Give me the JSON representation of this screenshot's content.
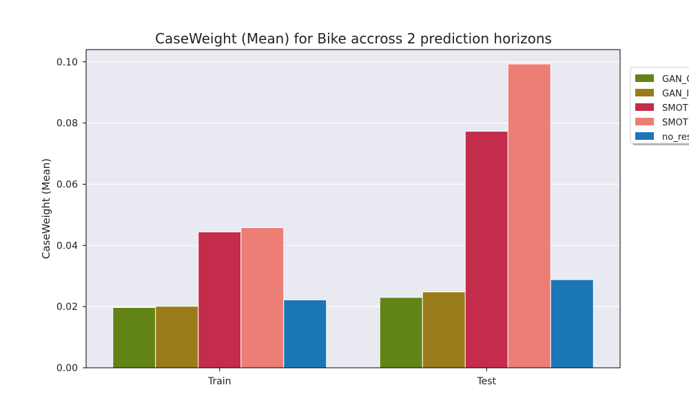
{
  "chart_data": {
    "type": "bar",
    "title": "CaseWeight (Mean) for Bike accross 2 prediction horizons",
    "xlabel": "",
    "ylabel": "CaseWeight (Mean)",
    "categories": [
      "Train",
      "Test"
    ],
    "ylim": [
      0,
      0.104
    ],
    "yticks": [
      "0.00",
      "0.02",
      "0.04",
      "0.06",
      "0.08",
      "0.10"
    ],
    "grid": true,
    "legend_position": "upper right, outside plot (clipped)",
    "series": [
      {
        "name": "GAN_C",
        "color": "#628316",
        "values": [
          0.0197,
          0.023
        ]
      },
      {
        "name": "GAN_I",
        "color": "#9a7b19",
        "values": [
          0.0201,
          0.0248
        ]
      },
      {
        "name": "SMOT",
        "color": "#c32c4a",
        "values": [
          0.0444,
          0.0773
        ]
      },
      {
        "name": "SMOT",
        "color": "#ec7e75",
        "values": [
          0.0458,
          0.0993
        ]
      },
      {
        "name": "no_res",
        "color": "#1a76b6",
        "values": [
          0.0222,
          0.0288
        ]
      }
    ]
  }
}
